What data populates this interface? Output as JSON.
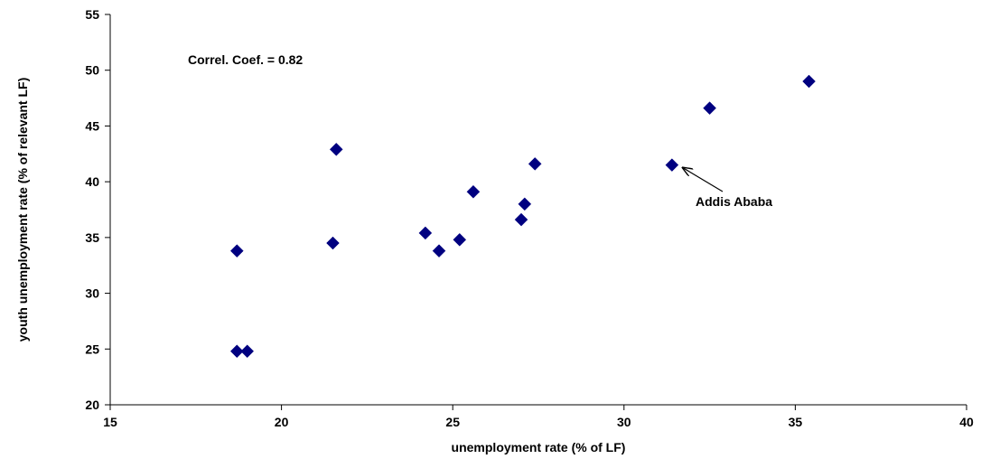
{
  "chart_data": {
    "type": "scatter",
    "title": "",
    "xlabel": "unemployment rate (% of LF)",
    "ylabel": "youth unemployment rate (% of relevant LF)",
    "xlim": [
      15,
      40
    ],
    "ylim": [
      20,
      55
    ],
    "xticks": [
      15,
      20,
      25,
      30,
      35,
      40
    ],
    "yticks": [
      20,
      25,
      30,
      35,
      40,
      45,
      50,
      55
    ],
    "grid": false,
    "marker": "diamond",
    "marker_color": "#000080",
    "points": [
      {
        "x": 18.7,
        "y": 33.8
      },
      {
        "x": 18.7,
        "y": 24.8
      },
      {
        "x": 19.0,
        "y": 24.8
      },
      {
        "x": 21.5,
        "y": 34.5
      },
      {
        "x": 21.6,
        "y": 42.9
      },
      {
        "x": 24.2,
        "y": 35.4
      },
      {
        "x": 24.6,
        "y": 33.8
      },
      {
        "x": 25.2,
        "y": 34.8
      },
      {
        "x": 25.6,
        "y": 39.1
      },
      {
        "x": 27.0,
        "y": 36.6
      },
      {
        "x": 27.1,
        "y": 38.0
      },
      {
        "x": 27.4,
        "y": 41.6
      },
      {
        "x": 31.4,
        "y": 41.5
      },
      {
        "x": 32.5,
        "y": 46.6
      },
      {
        "x": 35.4,
        "y": 49.0
      }
    ],
    "annotations": [
      {
        "text": "Correl. Coef.  = 0.82"
      },
      {
        "text": "Addis Ababa",
        "arrow_to": {
          "x": 31.4,
          "y": 41.5
        }
      }
    ]
  }
}
